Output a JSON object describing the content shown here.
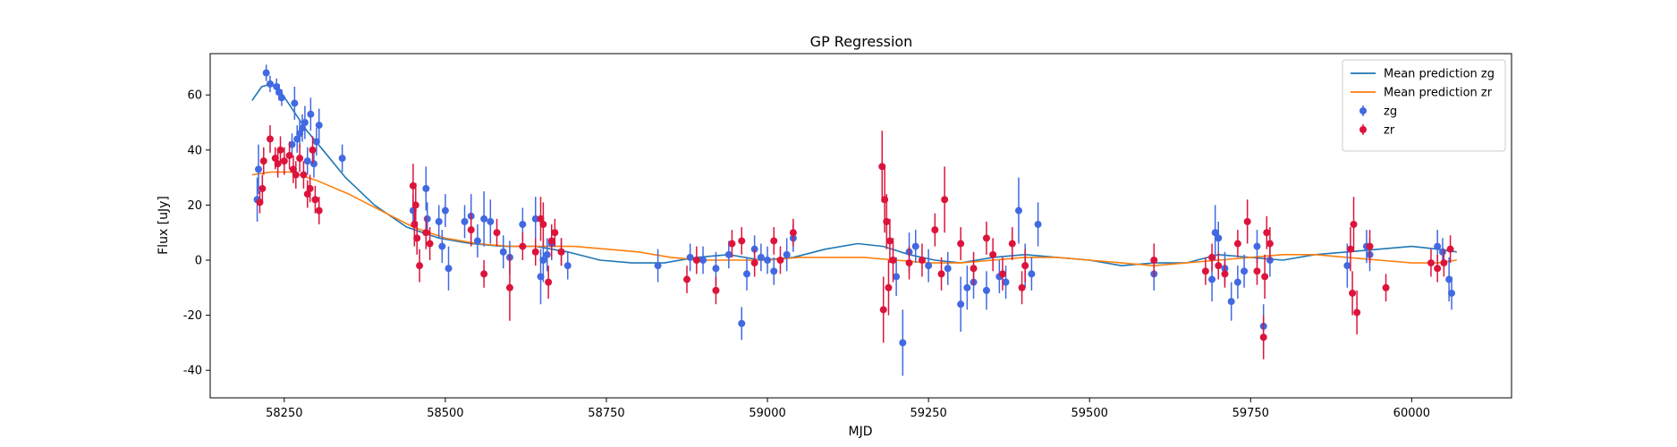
{
  "chart_data": {
    "type": "scatter",
    "title": "GP Regression",
    "xlabel": "MJD",
    "ylabel": "Flux [uJy]",
    "xlim": [
      58135,
      60155
    ],
    "ylim": [
      -50,
      75
    ],
    "xticks": [
      58250,
      58500,
      58750,
      59000,
      59250,
      59500,
      59750,
      60000
    ],
    "yticks": [
      -40,
      -20,
      0,
      20,
      40,
      60
    ],
    "legend_position": "top-right",
    "lines": [
      {
        "name": "Mean prediction zg",
        "color": "#1f77b4",
        "x": [
          58200,
          58215,
          58230,
          58245,
          58265,
          58285,
          58310,
          58345,
          58390,
          58440,
          58490,
          58540,
          58590,
          58640,
          58690,
          58740,
          58790,
          58840,
          58890,
          58940,
          58990,
          59040,
          59090,
          59140,
          59180,
          59220,
          59260,
          59300,
          59350,
          59400,
          59450,
          59500,
          59550,
          59600,
          59650,
          59700,
          59750,
          59800,
          59850,
          59900,
          59950,
          60000,
          60040,
          60070
        ],
        "y": [
          58,
          63,
          64,
          61,
          54,
          47,
          40,
          30,
          20,
          12,
          8,
          6,
          5,
          5,
          3,
          0,
          -1,
          -1,
          1,
          2,
          0,
          1,
          4,
          6,
          5,
          2,
          0,
          -1,
          1,
          2,
          1,
          0,
          -2,
          -1,
          -1,
          2,
          1,
          0,
          2,
          3,
          4,
          5,
          4,
          3
        ]
      },
      {
        "name": "Mean prediction zr",
        "color": "#ff7f0e",
        "x": [
          58200,
          58230,
          58260,
          58300,
          58350,
          58400,
          58450,
          58500,
          58550,
          58600,
          58650,
          58700,
          58750,
          58800,
          58850,
          58900,
          58950,
          59000,
          59050,
          59100,
          59150,
          59200,
          59250,
          59300,
          59350,
          59400,
          59450,
          59500,
          59550,
          59600,
          59650,
          59700,
          59750,
          59800,
          59850,
          59900,
          59950,
          60000,
          60040,
          60070
        ],
        "y": [
          31,
          32,
          32,
          29,
          24,
          18,
          12,
          8,
          6,
          5,
          5,
          5,
          4,
          3,
          1,
          0,
          0,
          0,
          1,
          1,
          1,
          0,
          -1,
          -1,
          0,
          1,
          1,
          0,
          -1,
          -2,
          -1,
          0,
          1,
          2,
          2,
          1,
          0,
          -1,
          -1,
          0
        ]
      }
    ],
    "scatter_series": [
      {
        "name": "zg",
        "color": "#4169e1",
        "points": [
          [
            58208,
            22,
            8
          ],
          [
            58210,
            33,
            9
          ],
          [
            58222,
            68,
            3
          ],
          [
            58228,
            64,
            3
          ],
          [
            58238,
            63,
            3
          ],
          [
            58242,
            61,
            3
          ],
          [
            58246,
            59,
            3
          ],
          [
            58262,
            42,
            4
          ],
          [
            58266,
            57,
            6
          ],
          [
            58270,
            44,
            5
          ],
          [
            58274,
            46,
            5
          ],
          [
            58278,
            48,
            5
          ],
          [
            58282,
            50,
            6
          ],
          [
            58286,
            36,
            5
          ],
          [
            58291,
            53,
            6
          ],
          [
            58296,
            35,
            5
          ],
          [
            58300,
            43,
            5
          ],
          [
            58304,
            49,
            6
          ],
          [
            58340,
            37,
            5
          ],
          [
            58450,
            18,
            6
          ],
          [
            58470,
            26,
            8
          ],
          [
            58472,
            15,
            6
          ],
          [
            58490,
            14,
            6
          ],
          [
            58495,
            5,
            6
          ],
          [
            58500,
            18,
            6
          ],
          [
            58505,
            -3,
            8
          ],
          [
            58530,
            14,
            6
          ],
          [
            58540,
            16,
            8
          ],
          [
            58550,
            7,
            6
          ],
          [
            58560,
            15,
            10
          ],
          [
            58570,
            14,
            8
          ],
          [
            58590,
            3,
            6
          ],
          [
            58600,
            1,
            6
          ],
          [
            58620,
            13,
            6
          ],
          [
            58640,
            15,
            8
          ],
          [
            58648,
            -6,
            10
          ],
          [
            58652,
            0,
            8
          ],
          [
            58658,
            2,
            6
          ],
          [
            58665,
            6,
            6
          ],
          [
            58680,
            3,
            5
          ],
          [
            58690,
            -2,
            5
          ],
          [
            58830,
            -2,
            6
          ],
          [
            58880,
            1,
            5
          ],
          [
            58900,
            0,
            5
          ],
          [
            58920,
            -3,
            6
          ],
          [
            58940,
            2,
            5
          ],
          [
            58960,
            -23,
            6
          ],
          [
            58968,
            -5,
            6
          ],
          [
            58980,
            4,
            5
          ],
          [
            58990,
            1,
            5
          ],
          [
            59000,
            0,
            5
          ],
          [
            59010,
            -4,
            5
          ],
          [
            59030,
            2,
            6
          ],
          [
            59040,
            8,
            5
          ],
          [
            59200,
            -6,
            7
          ],
          [
            59210,
            -30,
            12
          ],
          [
            59220,
            3,
            7
          ],
          [
            59230,
            5,
            6
          ],
          [
            59250,
            -2,
            6
          ],
          [
            59280,
            -3,
            6
          ],
          [
            59300,
            -16,
            10
          ],
          [
            59310,
            -10,
            8
          ],
          [
            59320,
            -8,
            6
          ],
          [
            59340,
            -11,
            7
          ],
          [
            59360,
            -6,
            6
          ],
          [
            59370,
            -8,
            6
          ],
          [
            59390,
            18,
            12
          ],
          [
            59400,
            -2,
            8
          ],
          [
            59410,
            -5,
            6
          ],
          [
            59420,
            13,
            8
          ],
          [
            59600,
            -5,
            6
          ],
          [
            59690,
            -7,
            8
          ],
          [
            59695,
            10,
            10
          ],
          [
            59700,
            8,
            6
          ],
          [
            59710,
            -3,
            6
          ],
          [
            59720,
            -15,
            7
          ],
          [
            59730,
            -8,
            6
          ],
          [
            59740,
            -4,
            6
          ],
          [
            59760,
            5,
            6
          ],
          [
            59770,
            -24,
            8
          ],
          [
            59780,
            0,
            6
          ],
          [
            59900,
            -2,
            8
          ],
          [
            59930,
            5,
            6
          ],
          [
            59935,
            2,
            6
          ],
          [
            60040,
            5,
            6
          ],
          [
            60048,
            3,
            5
          ],
          [
            60058,
            -7,
            8
          ],
          [
            60062,
            -12,
            6
          ]
        ]
      },
      {
        "name": "zr",
        "color": "#dc143c",
        "points": [
          [
            58212,
            21,
            4
          ],
          [
            58216,
            26,
            5
          ],
          [
            58218,
            36,
            5
          ],
          [
            58228,
            44,
            5
          ],
          [
            58236,
            37,
            4
          ],
          [
            58240,
            35,
            5
          ],
          [
            58244,
            40,
            5
          ],
          [
            58250,
            36,
            5
          ],
          [
            58258,
            38,
            5
          ],
          [
            58264,
            33,
            5
          ],
          [
            58268,
            31,
            5
          ],
          [
            58274,
            37,
            5
          ],
          [
            58280,
            31,
            5
          ],
          [
            58286,
            24,
            5
          ],
          [
            58290,
            26,
            5
          ],
          [
            58294,
            40,
            5
          ],
          [
            58298,
            22,
            5
          ],
          [
            58304,
            18,
            5
          ],
          [
            58450,
            27,
            8
          ],
          [
            58452,
            13,
            8
          ],
          [
            58454,
            20,
            8
          ],
          [
            58456,
            8,
            6
          ],
          [
            58460,
            -2,
            6
          ],
          [
            58470,
            10,
            6
          ],
          [
            58476,
            6,
            6
          ],
          [
            58540,
            11,
            6
          ],
          [
            58560,
            -5,
            5
          ],
          [
            58580,
            10,
            5
          ],
          [
            58600,
            -10,
            12
          ],
          [
            58620,
            5,
            5
          ],
          [
            58640,
            3,
            5
          ],
          [
            58648,
            15,
            8
          ],
          [
            58652,
            13,
            8
          ],
          [
            58660,
            -8,
            6
          ],
          [
            58665,
            7,
            6
          ],
          [
            58670,
            10,
            5
          ],
          [
            58680,
            3,
            5
          ],
          [
            58875,
            -7,
            5
          ],
          [
            58890,
            0,
            5
          ],
          [
            58920,
            -11,
            5
          ],
          [
            58945,
            6,
            5
          ],
          [
            58960,
            7,
            5
          ],
          [
            58980,
            -1,
            5
          ],
          [
            59010,
            7,
            5
          ],
          [
            59020,
            0,
            5
          ],
          [
            59040,
            10,
            5
          ],
          [
            59178,
            34,
            13
          ],
          [
            59180,
            -18,
            12
          ],
          [
            59182,
            22,
            12
          ],
          [
            59185,
            14,
            10
          ],
          [
            59188,
            -10,
            10
          ],
          [
            59190,
            7,
            8
          ],
          [
            59195,
            0,
            8
          ],
          [
            59220,
            -1,
            6
          ],
          [
            59240,
            0,
            6
          ],
          [
            59260,
            11,
            6
          ],
          [
            59270,
            -5,
            6
          ],
          [
            59275,
            22,
            12
          ],
          [
            59300,
            6,
            6
          ],
          [
            59320,
            -3,
            6
          ],
          [
            59340,
            8,
            6
          ],
          [
            59350,
            2,
            6
          ],
          [
            59365,
            -5,
            6
          ],
          [
            59380,
            6,
            6
          ],
          [
            59395,
            -10,
            6
          ],
          [
            59400,
            -2,
            6
          ],
          [
            59600,
            0,
            6
          ],
          [
            59680,
            -4,
            5
          ],
          [
            59690,
            1,
            5
          ],
          [
            59700,
            -2,
            5
          ],
          [
            59710,
            -5,
            5
          ],
          [
            59730,
            6,
            5
          ],
          [
            59745,
            14,
            8
          ],
          [
            59760,
            -4,
            5
          ],
          [
            59770,
            -28,
            8
          ],
          [
            59772,
            -6,
            8
          ],
          [
            59775,
            10,
            6
          ],
          [
            59780,
            6,
            6
          ],
          [
            59905,
            4,
            8
          ],
          [
            59908,
            -12,
            8
          ],
          [
            59910,
            13,
            10
          ],
          [
            59915,
            -19,
            8
          ],
          [
            59935,
            5,
            6
          ],
          [
            59960,
            -10,
            5
          ],
          [
            60030,
            -1,
            5
          ],
          [
            60040,
            -3,
            5
          ],
          [
            60050,
            -1,
            5
          ],
          [
            60060,
            4,
            5
          ]
        ]
      }
    ]
  }
}
